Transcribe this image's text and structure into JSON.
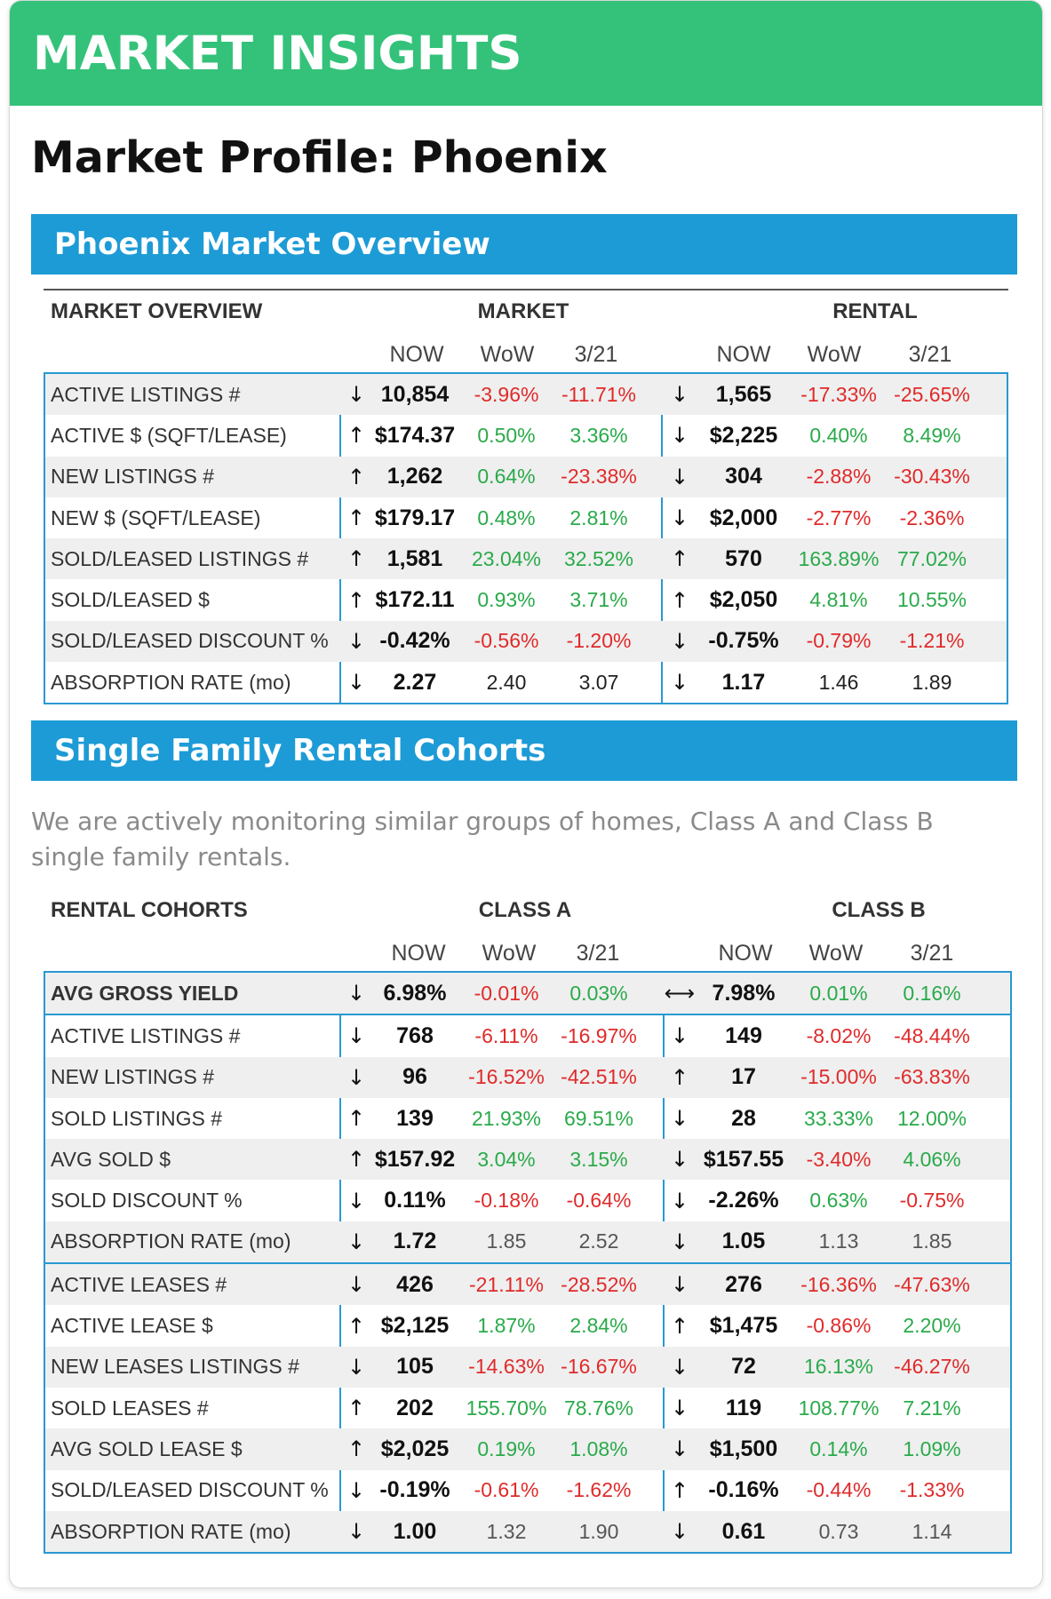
{
  "header": {
    "banner": "MARKET INSIGHTS",
    "title": "Market Profile: Phoenix"
  },
  "colors": {
    "banner": "#34c27a",
    "section": "#1d9bd6",
    "border": "#2a98d3",
    "negative": "#e02a2a",
    "positive": "#2aaa4a"
  },
  "overview": {
    "section_title": "Phoenix Market Overview",
    "table_label": "MARKET OVERVIEW",
    "group_a": "MARKET",
    "group_b": "RENTAL",
    "subheaders": [
      "NOW",
      "WoW",
      "3/21",
      "NOW",
      "WoW",
      "3/21"
    ],
    "rows": [
      {
        "label": "ACTIVE LISTINGS #",
        "a_arrow": "↓",
        "a_now": "10,854",
        "a_wow": "-3.96%",
        "a_m": "-11.71%",
        "b_arrow": "↓",
        "b_now": "1,565",
        "b_wow": "-17.33%",
        "b_m": "-25.65%"
      },
      {
        "label": "ACTIVE $ (SQFT/LEASE)",
        "a_arrow": "↑",
        "a_now": "$174.37",
        "a_wow": "0.50%",
        "a_m": "3.36%",
        "b_arrow": "↓",
        "b_now": "$2,225",
        "b_wow": "0.40%",
        "b_m": "8.49%"
      },
      {
        "label": "NEW LISTINGS #",
        "a_arrow": "↑",
        "a_now": "1,262",
        "a_wow": "0.64%",
        "a_m": "-23.38%",
        "b_arrow": "↓",
        "b_now": "304",
        "b_wow": "-2.88%",
        "b_m": "-30.43%"
      },
      {
        "label": "NEW $ (SQFT/LEASE)",
        "a_arrow": "↑",
        "a_now": "$179.17",
        "a_wow": "0.48%",
        "a_m": "2.81%",
        "b_arrow": "↓",
        "b_now": "$2,000",
        "b_wow": "-2.77%",
        "b_m": "-2.36%"
      },
      {
        "label": "SOLD/LEASED LISTINGS #",
        "a_arrow": "↑",
        "a_now": "1,581",
        "a_wow": "23.04%",
        "a_m": "32.52%",
        "b_arrow": "↑",
        "b_now": "570",
        "b_wow": "163.89%",
        "b_m": "77.02%"
      },
      {
        "label": "SOLD/LEASED $",
        "a_arrow": "↑",
        "a_now": "$172.11",
        "a_wow": "0.93%",
        "a_m": "3.71%",
        "b_arrow": "↑",
        "b_now": "$2,050",
        "b_wow": "4.81%",
        "b_m": "10.55%"
      },
      {
        "label": "SOLD/LEASED DISCOUNT %",
        "a_arrow": "↓",
        "a_now": "-0.42%",
        "a_wow": "-0.56%",
        "a_m": "-1.20%",
        "b_arrow": "↓",
        "b_now": "-0.75%",
        "b_wow": "-0.79%",
        "b_m": "-1.21%"
      },
      {
        "label": "ABSORPTION RATE (mo)",
        "a_arrow": "↓",
        "a_now": "2.27",
        "a_wow": "2.40",
        "a_m": "3.07",
        "b_arrow": "↓",
        "b_now": "1.17",
        "b_wow": "1.46",
        "b_m": "1.89"
      }
    ]
  },
  "cohorts": {
    "section_title": "Single Family Rental Cohorts",
    "intro": "We are actively monitoring similar groups of homes, Class A and Class B single family rentals.",
    "table_label": "RENTAL COHORTS",
    "group_a": "CLASS A",
    "group_b": "CLASS B",
    "subheaders": [
      "NOW",
      "WoW",
      "3/21",
      "NOW",
      "WoW",
      "3/21"
    ],
    "yield_rows": [
      {
        "label": "AVG GROSS YIELD",
        "a_arrow": "↓",
        "a_now": "6.98%",
        "a_wow": "-0.01%",
        "a_m": "0.03%",
        "b_arrow": "⟷",
        "b_now": "7.98%",
        "b_wow": "0.01%",
        "b_m": "0.16%"
      }
    ],
    "sales_rows": [
      {
        "label": "ACTIVE LISTINGS #",
        "a_arrow": "↓",
        "a_now": "768",
        "a_wow": "-6.11%",
        "a_m": "-16.97%",
        "b_arrow": "↓",
        "b_now": "149",
        "b_wow": "-8.02%",
        "b_m": "-48.44%"
      },
      {
        "label": "NEW LISTINGS #",
        "a_arrow": "↓",
        "a_now": "96",
        "a_wow": "-16.52%",
        "a_m": "-42.51%",
        "b_arrow": "↑",
        "b_now": "17",
        "b_wow": "-15.00%",
        "b_m": "-63.83%"
      },
      {
        "label": "SOLD LISTINGS #",
        "a_arrow": "↑",
        "a_now": "139",
        "a_wow": "21.93%",
        "a_m": "69.51%",
        "b_arrow": "↓",
        "b_now": "28",
        "b_wow": "33.33%",
        "b_m": "12.00%"
      },
      {
        "label": "AVG SOLD $",
        "a_arrow": "↑",
        "a_now": "$157.92",
        "a_wow": "3.04%",
        "a_m": "3.15%",
        "b_arrow": "↓",
        "b_now": "$157.55",
        "b_wow": "-3.40%",
        "b_m": "4.06%"
      },
      {
        "label": "SOLD DISCOUNT %",
        "a_arrow": "↓",
        "a_now": "0.11%",
        "a_wow": "-0.18%",
        "a_m": "-0.64%",
        "b_arrow": "↓",
        "b_now": "-2.26%",
        "b_wow": "0.63%",
        "b_m": "-0.75%"
      },
      {
        "label": "ABSORPTION RATE (mo)",
        "a_arrow": "↓",
        "a_now": "1.72",
        "a_wow": "1.85",
        "a_m": "2.52",
        "b_arrow": "↓",
        "b_now": "1.05",
        "b_wow": "1.13",
        "b_m": "1.85"
      }
    ],
    "lease_rows": [
      {
        "label": "ACTIVE LEASES #",
        "a_arrow": "↓",
        "a_now": "426",
        "a_wow": "-21.11%",
        "a_m": "-28.52%",
        "b_arrow": "↓",
        "b_now": "276",
        "b_wow": "-16.36%",
        "b_m": "-47.63%"
      },
      {
        "label": "ACTIVE LEASE $",
        "a_arrow": "↑",
        "a_now": "$2,125",
        "a_wow": "1.87%",
        "a_m": "2.84%",
        "b_arrow": "↑",
        "b_now": "$1,475",
        "b_wow": "-0.86%",
        "b_m": "2.20%"
      },
      {
        "label": "NEW LEASES LISTINGS #",
        "a_arrow": "↓",
        "a_now": "105",
        "a_wow": "-14.63%",
        "a_m": "-16.67%",
        "b_arrow": "↓",
        "b_now": "72",
        "b_wow": "16.13%",
        "b_m": "-46.27%"
      },
      {
        "label": "SOLD LEASES #",
        "a_arrow": "↑",
        "a_now": "202",
        "a_wow": "155.70%",
        "a_m": "78.76%",
        "b_arrow": "↓",
        "b_now": "119",
        "b_wow": "108.77%",
        "b_m": "7.21%"
      },
      {
        "label": "AVG SOLD LEASE $",
        "a_arrow": "↑",
        "a_now": "$2,025",
        "a_wow": "0.19%",
        "a_m": "1.08%",
        "b_arrow": "↓",
        "b_now": "$1,500",
        "b_wow": "0.14%",
        "b_m": "1.09%"
      },
      {
        "label": "SOLD/LEASED DISCOUNT %",
        "a_arrow": "↓",
        "a_now": "-0.19%",
        "a_wow": "-0.61%",
        "a_m": "-1.62%",
        "b_arrow": "↑",
        "b_now": "-0.16%",
        "b_wow": "-0.44%",
        "b_m": "-1.33%"
      },
      {
        "label": "ABSORPTION RATE (mo)",
        "a_arrow": "↓",
        "a_now": "1.00",
        "a_wow": "1.32",
        "a_m": "1.90",
        "b_arrow": "↓",
        "b_now": "0.61",
        "b_wow": "0.73",
        "b_m": "1.14"
      }
    ]
  }
}
